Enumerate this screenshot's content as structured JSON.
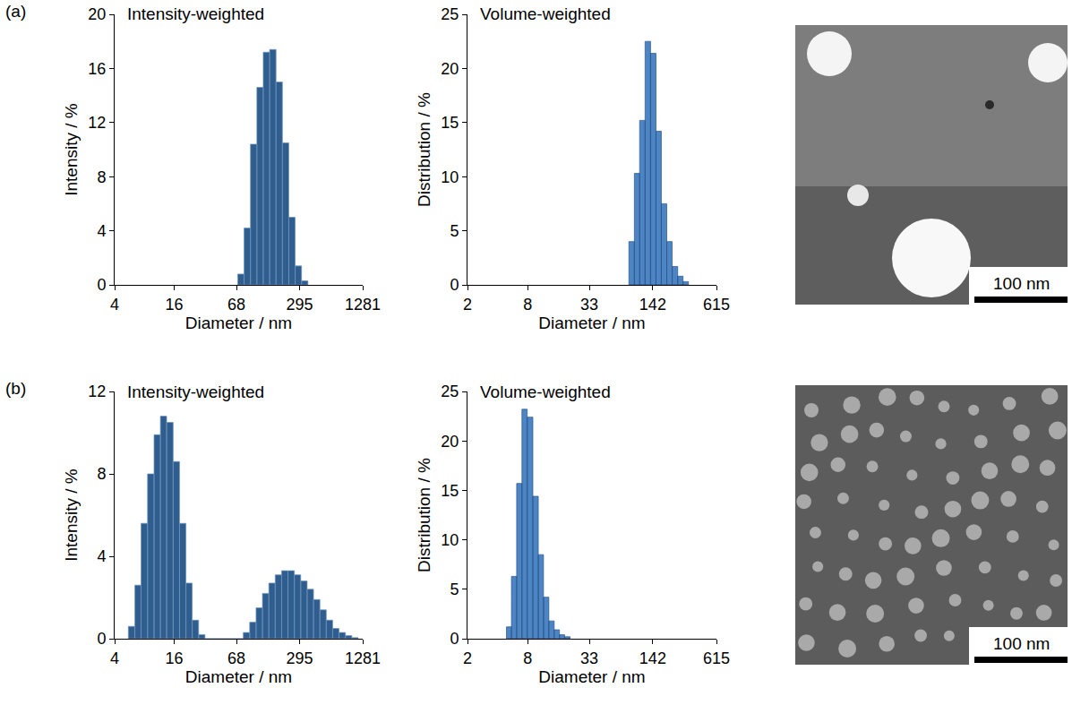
{
  "chart_data": [
    {
      "panel": "(a)",
      "type": "histogram",
      "title": "Intensity-weighted",
      "x_label": "Diameter / nm",
      "y_label": "Intensity / %",
      "bins": [
        70,
        81.2,
        94.2,
        109.3,
        126.8,
        147.1,
        170.6,
        197.9,
        229.6,
        266.3,
        308.9,
        358.3
      ],
      "values": [
        0.8,
        4.2,
        10.4,
        14.6,
        17.2,
        17.4,
        15.0,
        10.5,
        5.0,
        1.4,
        0.3
      ],
      "color": "#2f5e8e",
      "log": "x",
      "grid": false,
      "xlim": [
        4,
        1281
      ],
      "xticks": [
        4,
        16,
        68,
        295,
        1281
      ],
      "ylim": [
        0,
        20
      ],
      "yticks": [
        0,
        4,
        8,
        12,
        16,
        20
      ]
    },
    {
      "panel": "(a)",
      "type": "histogram",
      "title": "Volume-weighted",
      "x_label": "Diameter / nm",
      "y_label": "Distribution / %",
      "bins": [
        82,
        93,
        105,
        119,
        135,
        153,
        173,
        196,
        222,
        252,
        285,
        323
      ],
      "values": [
        4.0,
        10.3,
        15.2,
        22.5,
        21.4,
        14.2,
        7.5,
        4.0,
        1.7,
        0.8,
        0.3
      ],
      "color": "#4d84c4",
      "log": "x",
      "grid": false,
      "xlim": [
        2,
        615
      ],
      "xticks": [
        2,
        8,
        33,
        142,
        615
      ],
      "ylim": [
        0,
        25
      ],
      "yticks": [
        0,
        5,
        10,
        15,
        20,
        25
      ]
    },
    {
      "panel": "(b)",
      "type": "histogram",
      "title": "Intensity-weighted",
      "x_label": "Diameter / nm",
      "y_label": "Intensity / %",
      "bins": [
        5.5,
        6.4,
        7.4,
        8.6,
        10.0,
        11.6,
        13.4,
        15.6,
        18.1,
        21.0,
        24.3,
        28.2,
        32.7,
        38.0,
        44.0,
        51.1,
        59.3,
        68.7,
        79.7,
        92.5,
        107.3,
        124.5,
        144.4,
        167.5,
        194.3,
        225.3,
        261.4,
        303.2,
        351.7,
        408.0,
        473.3,
        549.0,
        636.9,
        738.8,
        857.0,
        994.1,
        1153.2
      ],
      "values": [
        0.6,
        2.6,
        5.6,
        8.0,
        9.9,
        10.8,
        10.5,
        8.6,
        5.6,
        2.7,
        0.9,
        0.2,
        0,
        0,
        0,
        0,
        0,
        0,
        0.3,
        0.8,
        1.5,
        2.2,
        2.7,
        3.1,
        3.3,
        3.3,
        3.1,
        2.8,
        2.4,
        1.9,
        1.4,
        0.9,
        0.5,
        0.3,
        0.15,
        0.05
      ],
      "color": "#2f5e8e",
      "log": "x",
      "grid": false,
      "xlim": [
        4,
        1281
      ],
      "xticks": [
        4,
        16,
        68,
        295,
        1281
      ],
      "ylim": [
        0,
        12
      ],
      "yticks": [
        0,
        4,
        8,
        12
      ]
    },
    {
      "panel": "(b)",
      "type": "histogram",
      "title": "Volume-weighted",
      "x_label": "Diameter / nm",
      "y_label": "Distribution / %",
      "bins": [
        4.9,
        5.5,
        6.2,
        7.0,
        7.9,
        9.0,
        10.2,
        11.5,
        13.0,
        14.7,
        16.6,
        18.7,
        21.2
      ],
      "values": [
        1.2,
        6.3,
        15.7,
        23.2,
        22.4,
        14.4,
        8.5,
        4.2,
        1.8,
        0.9,
        0.4,
        0.2
      ],
      "color": "#4d84c4",
      "log": "x",
      "grid": false,
      "xlim": [
        2,
        615
      ],
      "xticks": [
        2,
        8,
        33,
        142,
        615
      ],
      "ylim": [
        0,
        25
      ],
      "yticks": [
        0,
        5,
        10,
        15,
        20,
        25
      ]
    }
  ],
  "images": [
    {
      "panel": "(a)",
      "scale_bar": "100 nm"
    },
    {
      "panel": "(b)",
      "scale_bar": "100 nm"
    }
  ]
}
